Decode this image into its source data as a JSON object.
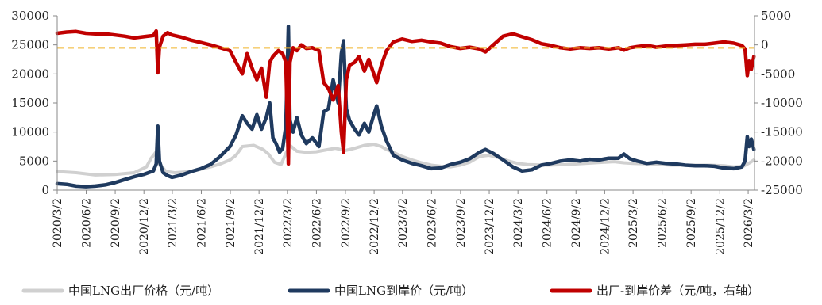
{
  "chart_data": {
    "type": "line",
    "title": "",
    "xlabel": "",
    "ylabel": "",
    "x_ticks": [
      "2020/3/2",
      "2020/6/2",
      "2020/9/2",
      "2020/12/2",
      "2021/3/2",
      "2021/6/2",
      "2021/9/2",
      "2021/12/2",
      "2022/3/2",
      "2022/6/2",
      "2022/9/2",
      "2022/12/2",
      "2023/3/2",
      "2023/6/2",
      "2023/9/2",
      "2023/12/2",
      "2024/3/2",
      "2024/6/2",
      "2024/9/2",
      "2024/12/2",
      "2025/3/2",
      "2025/6/2",
      "2025/9/2",
      "2025/12/2",
      "2026/3/2"
    ],
    "y_left": {
      "ticks": [
        "0",
        "5000",
        "10000",
        "15000",
        "20000",
        "25000",
        "30000"
      ],
      "lim": [
        0,
        30000
      ]
    },
    "y_right": {
      "ticks": [
        "-25000",
        "-20000",
        "-15000",
        "-10000",
        "-5000",
        "0",
        "5000"
      ],
      "lim": [
        -25000,
        5000
      ]
    },
    "reference_line": {
      "axis": "right",
      "value": -500,
      "color": "#f0b429",
      "style": "dashed"
    },
    "grid": false,
    "legend_position": "bottom",
    "series": [
      {
        "name": "中国LNG出厂价格（元/吨）",
        "axis": "left",
        "color": "#d0d0d0",
        "points": [
          [
            "2020/3/2",
            3200
          ],
          [
            "2020/5/1",
            3000
          ],
          [
            "2020/7/1",
            2600
          ],
          [
            "2020/9/1",
            2700
          ],
          [
            "2020/11/1",
            3000
          ],
          [
            "2020/12/10",
            4000
          ],
          [
            "2020/12/25",
            5500
          ],
          [
            "2021/1/10",
            6600
          ],
          [
            "2021/1/20",
            4500
          ],
          [
            "2021/2/10",
            3200
          ],
          [
            "2021/3/10",
            3000
          ],
          [
            "2021/5/1",
            3200
          ],
          [
            "2021/7/1",
            4000
          ],
          [
            "2021/8/1",
            4500
          ],
          [
            "2021/9/1",
            5200
          ],
          [
            "2021/9/20",
            6000
          ],
          [
            "2021/10/10",
            7500
          ],
          [
            "2021/11/15",
            7700
          ],
          [
            "2021/12/15",
            7000
          ],
          [
            "2022/1/1",
            6200
          ],
          [
            "2022/1/20",
            4800
          ],
          [
            "2022/2/10",
            4400
          ],
          [
            "2022/2/25",
            6300
          ],
          [
            "2022/3/10",
            7700
          ],
          [
            "2022/4/1",
            6700
          ],
          [
            "2022/5/1",
            6500
          ],
          [
            "2022/6/1",
            6600
          ],
          [
            "2022/7/1",
            6900
          ],
          [
            "2022/8/1",
            7200
          ],
          [
            "2022/9/1",
            6800
          ],
          [
            "2022/10/1",
            7200
          ],
          [
            "2022/11/1",
            7700
          ],
          [
            "2022/12/1",
            7900
          ],
          [
            "2022/12/25",
            7500
          ],
          [
            "2023/1/10",
            7000
          ],
          [
            "2023/2/1",
            6500
          ],
          [
            "2023/3/1",
            5800
          ],
          [
            "2023/4/1",
            5200
          ],
          [
            "2023/5/1",
            4700
          ],
          [
            "2023/6/1",
            4300
          ],
          [
            "2023/7/1",
            4100
          ],
          [
            "2023/8/1",
            4000
          ],
          [
            "2023/9/1",
            4300
          ],
          [
            "2023/10/1",
            4800
          ],
          [
            "2023/11/1",
            5800
          ],
          [
            "2023/12/1",
            6000
          ],
          [
            "2024/1/1",
            5600
          ],
          [
            "2024/2/1",
            5000
          ],
          [
            "2024/3/1",
            4600
          ],
          [
            "2024/4/1",
            4400
          ],
          [
            "2024/6/1",
            4300
          ],
          [
            "2024/8/1",
            4400
          ],
          [
            "2024/10/1",
            4600
          ],
          [
            "2024/12/1",
            4800
          ],
          [
            "2025/1/1",
            4900
          ],
          [
            "2025/2/1",
            4700
          ],
          [
            "2025/3/1",
            4600
          ],
          [
            "2025/5/1",
            4500
          ],
          [
            "2025/7/1",
            4300
          ],
          [
            "2025/9/1",
            4300
          ],
          [
            "2025/11/1",
            4300
          ],
          [
            "2025/12/15",
            4200
          ],
          [
            "2026/1/15",
            4000
          ],
          [
            "2026/2/15",
            4100
          ],
          [
            "2026/3/10",
            4800
          ],
          [
            "2026/3/20",
            5200
          ]
        ]
      },
      {
        "name": "中国LNG到岸价（元/吨）",
        "axis": "left",
        "color": "#1f3a5f",
        "points": [
          [
            "2020/3/2",
            1100
          ],
          [
            "2020/4/1",
            1000
          ],
          [
            "2020/5/1",
            700
          ],
          [
            "2020/6/1",
            600
          ],
          [
            "2020/7/1",
            700
          ],
          [
            "2020/8/1",
            900
          ],
          [
            "2020/9/1",
            1300
          ],
          [
            "2020/10/1",
            1800
          ],
          [
            "2020/11/1",
            2300
          ],
          [
            "2020/12/1",
            2700
          ],
          [
            "2021/1/1",
            3300
          ],
          [
            "2021/1/10",
            4500
          ],
          [
            "2021/1/15",
            11000
          ],
          [
            "2021/1/20",
            5000
          ],
          [
            "2021/2/1",
            3000
          ],
          [
            "2021/2/15",
            2500
          ],
          [
            "2021/3/1",
            2200
          ],
          [
            "2021/4/1",
            2600
          ],
          [
            "2021/5/1",
            3200
          ],
          [
            "2021/6/1",
            3700
          ],
          [
            "2021/7/1",
            4400
          ],
          [
            "2021/8/1",
            5800
          ],
          [
            "2021/9/1",
            7500
          ],
          [
            "2021/9/20",
            9500
          ],
          [
            "2021/10/10",
            12800
          ],
          [
            "2021/10/25",
            11500
          ],
          [
            "2021/11/10",
            10500
          ],
          [
            "2021/11/25",
            13000
          ],
          [
            "2021/12/10",
            10500
          ],
          [
            "2021/12/25",
            12500
          ],
          [
            "2022/1/5",
            15000
          ],
          [
            "2022/1/15",
            9000
          ],
          [
            "2022/1/25",
            8000
          ],
          [
            "2022/2/5",
            6500
          ],
          [
            "2022/2/15",
            7200
          ],
          [
            "2022/2/25",
            11000
          ],
          [
            "2022/3/5",
            28200
          ],
          [
            "2022/3/10",
            12000
          ],
          [
            "2022/3/20",
            10000
          ],
          [
            "2022/4/1",
            12500
          ],
          [
            "2022/4/15",
            9500
          ],
          [
            "2022/5/1",
            8000
          ],
          [
            "2022/5/20",
            9000
          ],
          [
            "2022/6/10",
            7500
          ],
          [
            "2022/6/25",
            13500
          ],
          [
            "2022/7/10",
            14000
          ],
          [
            "2022/7/25",
            19000
          ],
          [
            "2022/8/10",
            15000
          ],
          [
            "2022/8/20",
            23500
          ],
          [
            "2022/8/27",
            25700
          ],
          [
            "2022/9/5",
            14000
          ],
          [
            "2022/9/15",
            12000
          ],
          [
            "2022/10/1",
            10500
          ],
          [
            "2022/10/15",
            9500
          ],
          [
            "2022/11/1",
            11500
          ],
          [
            "2022/11/15",
            10000
          ],
          [
            "2022/12/1",
            13000
          ],
          [
            "2022/12/10",
            14500
          ],
          [
            "2022/12/25",
            11000
          ],
          [
            "2023/1/10",
            8500
          ],
          [
            "2023/2/1",
            6000
          ],
          [
            "2023/3/1",
            5200
          ],
          [
            "2023/4/1",
            4600
          ],
          [
            "2023/5/1",
            4200
          ],
          [
            "2023/6/1",
            3700
          ],
          [
            "2023/7/1",
            3800
          ],
          [
            "2023/8/1",
            4400
          ],
          [
            "2023/9/1",
            4800
          ],
          [
            "2023/10/1",
            5400
          ],
          [
            "2023/11/1",
            6500
          ],
          [
            "2023/11/20",
            7000
          ],
          [
            "2023/12/15",
            6300
          ],
          [
            "2024/1/15",
            5200
          ],
          [
            "2024/2/15",
            4000
          ],
          [
            "2024/3/15",
            3300
          ],
          [
            "2024/4/15",
            3500
          ],
          [
            "2024/5/15",
            4300
          ],
          [
            "2024/6/15",
            4600
          ],
          [
            "2024/7/15",
            5000
          ],
          [
            "2024/8/15",
            5200
          ],
          [
            "2024/9/15",
            5000
          ],
          [
            "2024/10/15",
            5300
          ],
          [
            "2024/11/15",
            5200
          ],
          [
            "2024/12/15",
            5500
          ],
          [
            "2025/1/15",
            5500
          ],
          [
            "2025/2/1",
            6200
          ],
          [
            "2025/2/20",
            5400
          ],
          [
            "2025/3/15",
            5000
          ],
          [
            "2025/4/15",
            4600
          ],
          [
            "2025/5/15",
            4800
          ],
          [
            "2025/6/15",
            4600
          ],
          [
            "2025/7/15",
            4500
          ],
          [
            "2025/8/15",
            4300
          ],
          [
            "2025/9/15",
            4200
          ],
          [
            "2025/10/15",
            4200
          ],
          [
            "2025/11/15",
            4100
          ],
          [
            "2025/12/15",
            3800
          ],
          [
            "2026/1/15",
            3700
          ],
          [
            "2026/2/10",
            4000
          ],
          [
            "2026/2/20",
            5000
          ],
          [
            "2026/2/27",
            9200
          ],
          [
            "2026/3/5",
            7500
          ],
          [
            "2026/3/12",
            8800
          ],
          [
            "2026/3/20",
            7000
          ]
        ]
      },
      {
        "name": "出厂-到岸价差（元/吨，右轴）",
        "axis": "right",
        "color": "#c00000",
        "points": [
          [
            "2020/3/2",
            2000
          ],
          [
            "2020/4/1",
            2200
          ],
          [
            "2020/5/1",
            2300
          ],
          [
            "2020/6/1",
            2000
          ],
          [
            "2020/7/1",
            1900
          ],
          [
            "2020/8/1",
            1900
          ],
          [
            "2020/9/1",
            1700
          ],
          [
            "2020/10/1",
            1500
          ],
          [
            "2020/11/1",
            1200
          ],
          [
            "2020/12/1",
            1400
          ],
          [
            "2021/1/1",
            1600
          ],
          [
            "2021/1/10",
            2400
          ],
          [
            "2021/1/15",
            -4800
          ],
          [
            "2021/1/20",
            -400
          ],
          [
            "2021/2/1",
            1500
          ],
          [
            "2021/2/15",
            2100
          ],
          [
            "2021/3/1",
            1700
          ],
          [
            "2021/4/1",
            1300
          ],
          [
            "2021/5/1",
            800
          ],
          [
            "2021/6/1",
            400
          ],
          [
            "2021/7/1",
            0
          ],
          [
            "2021/8/1",
            -500
          ],
          [
            "2021/9/1",
            -1000
          ],
          [
            "2021/9/20",
            -3000
          ],
          [
            "2021/10/10",
            -5000
          ],
          [
            "2021/10/25",
            -1500
          ],
          [
            "2021/11/10",
            -4000
          ],
          [
            "2021/11/25",
            -6000
          ],
          [
            "2021/12/10",
            -4000
          ],
          [
            "2021/12/25",
            -9000
          ],
          [
            "2022/1/5",
            -3000
          ],
          [
            "2022/1/15",
            -2000
          ],
          [
            "2022/2/1",
            -1000
          ],
          [
            "2022/2/15",
            -1500
          ],
          [
            "2022/2/25",
            -3000
          ],
          [
            "2022/3/5",
            -20500
          ],
          [
            "2022/3/10",
            -3000
          ],
          [
            "2022/3/20",
            -500
          ],
          [
            "2022/4/1",
            -1000
          ],
          [
            "2022/4/15",
            0
          ],
          [
            "2022/5/1",
            -600
          ],
          [
            "2022/5/20",
            -500
          ],
          [
            "2022/6/10",
            -1000
          ],
          [
            "2022/6/25",
            -6500
          ],
          [
            "2022/7/10",
            -7500
          ],
          [
            "2022/7/25",
            -9500
          ],
          [
            "2022/8/10",
            -7000
          ],
          [
            "2022/8/20",
            -15000
          ],
          [
            "2022/8/27",
            -18500
          ],
          [
            "2022/9/5",
            -6000
          ],
          [
            "2022/9/15",
            -3500
          ],
          [
            "2022/10/1",
            -3000
          ],
          [
            "2022/10/15",
            -2000
          ],
          [
            "2022/11/1",
            -4500
          ],
          [
            "2022/11/15",
            -2500
          ],
          [
            "2022/12/1",
            -5000
          ],
          [
            "2022/12/10",
            -6500
          ],
          [
            "2022/12/25",
            -3500
          ],
          [
            "2023/1/10",
            -1000
          ],
          [
            "2023/2/1",
            500
          ],
          [
            "2023/3/1",
            1000
          ],
          [
            "2023/4/1",
            600
          ],
          [
            "2023/5/1",
            800
          ],
          [
            "2023/6/1",
            500
          ],
          [
            "2023/7/1",
            300
          ],
          [
            "2023/8/1",
            -300
          ],
          [
            "2023/9/1",
            -600
          ],
          [
            "2023/10/1",
            -400
          ],
          [
            "2023/11/1",
            -700
          ],
          [
            "2023/11/20",
            -1200
          ],
          [
            "2023/12/15",
            0
          ],
          [
            "2024/1/15",
            1500
          ],
          [
            "2024/2/15",
            1900
          ],
          [
            "2024/3/15",
            1400
          ],
          [
            "2024/4/15",
            900
          ],
          [
            "2024/5/15",
            200
          ],
          [
            "2024/6/15",
            -100
          ],
          [
            "2024/7/15",
            -500
          ],
          [
            "2024/8/15",
            -700
          ],
          [
            "2024/9/15",
            -500
          ],
          [
            "2024/10/15",
            -600
          ],
          [
            "2024/11/15",
            -500
          ],
          [
            "2024/12/15",
            -700
          ],
          [
            "2025/1/15",
            -500
          ],
          [
            "2025/2/1",
            -900
          ],
          [
            "2025/2/20",
            -500
          ],
          [
            "2025/3/15",
            -300
          ],
          [
            "2025/4/15",
            -100
          ],
          [
            "2025/5/15",
            -400
          ],
          [
            "2025/6/15",
            -200
          ],
          [
            "2025/7/15",
            -100
          ],
          [
            "2025/8/15",
            0
          ],
          [
            "2025/9/15",
            100
          ],
          [
            "2025/10/15",
            100
          ],
          [
            "2025/11/15",
            300
          ],
          [
            "2025/12/15",
            500
          ],
          [
            "2026/1/15",
            300
          ],
          [
            "2026/2/10",
            -100
          ],
          [
            "2026/2/20",
            -700
          ],
          [
            "2026/2/27",
            -5300
          ],
          [
            "2026/3/5",
            -2800
          ],
          [
            "2026/3/12",
            -4200
          ],
          [
            "2026/3/20",
            -2000
          ]
        ]
      }
    ]
  }
}
